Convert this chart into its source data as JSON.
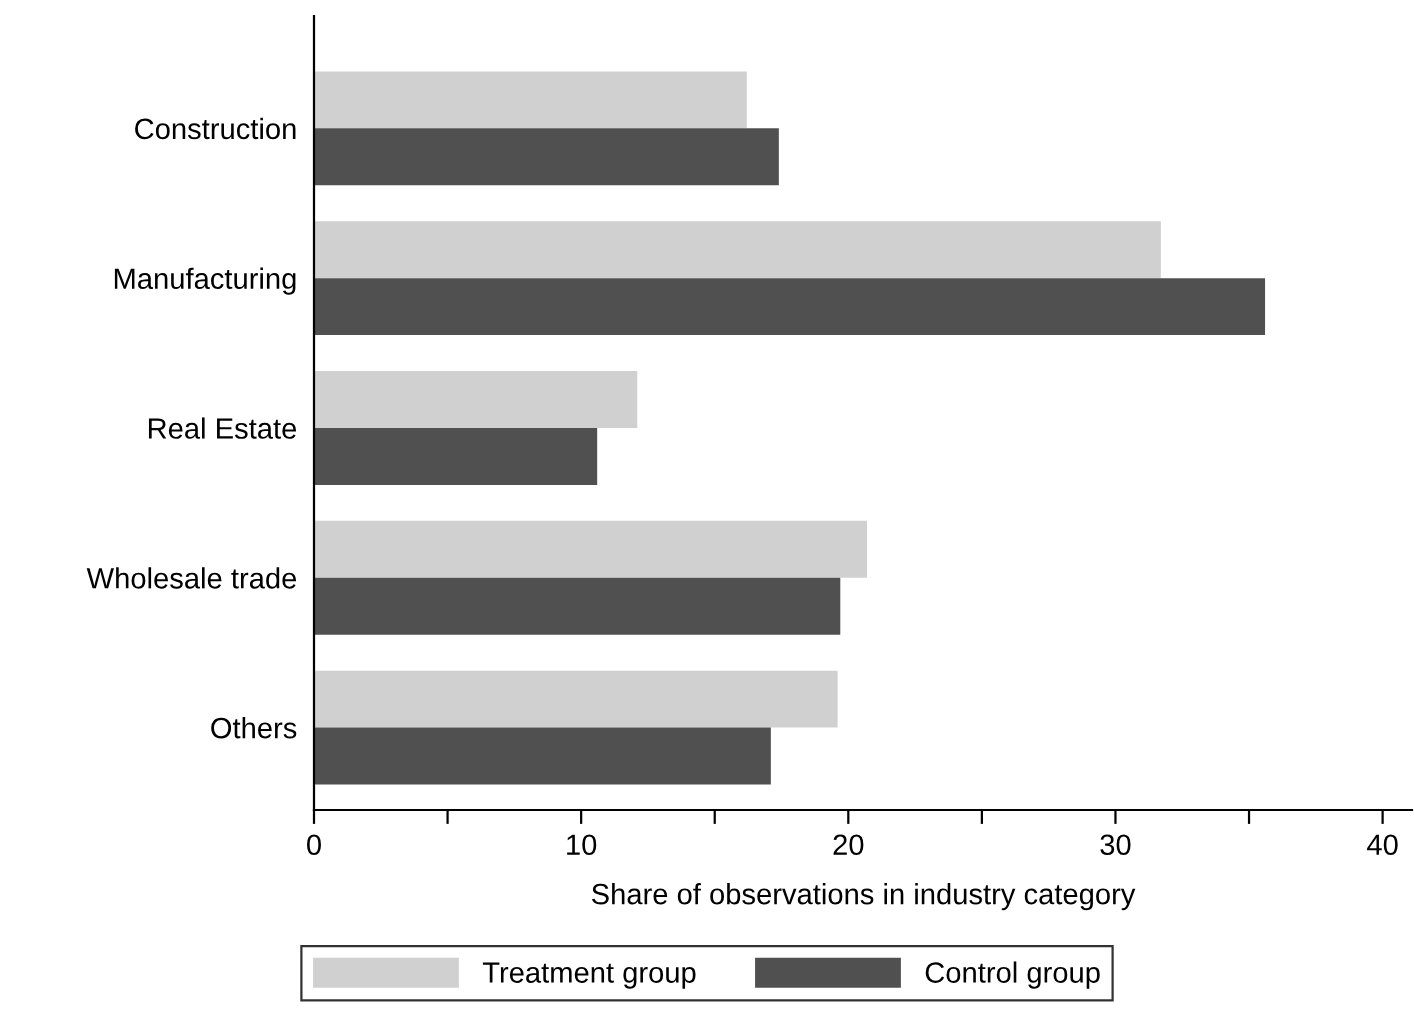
{
  "chart_data": {
    "type": "bar",
    "orientation": "horizontal",
    "xlabel": "Share of observations in industry category",
    "categories": [
      "Construction",
      "Manufacturing",
      "Real Estate",
      "Wholesale trade",
      "Others"
    ],
    "series": [
      {
        "name": "Treatment group",
        "color": "#d0d0d0",
        "values": [
          16.2,
          31.7,
          12.1,
          20.7,
          19.6
        ]
      },
      {
        "name": "Control group",
        "color": "#505050",
        "values": [
          17.4,
          35.6,
          10.6,
          19.7,
          17.1
        ]
      }
    ],
    "xlim": [
      0,
      41.1
    ],
    "xticks": [
      0,
      {
        "value": 5,
        "label": null
      },
      10,
      {
        "value": 15,
        "label": null
      },
      20,
      {
        "value": 25,
        "label": null
      },
      30,
      {
        "value": 35,
        "label": null
      },
      40
    ],
    "grid": false,
    "legend": "bottom"
  }
}
